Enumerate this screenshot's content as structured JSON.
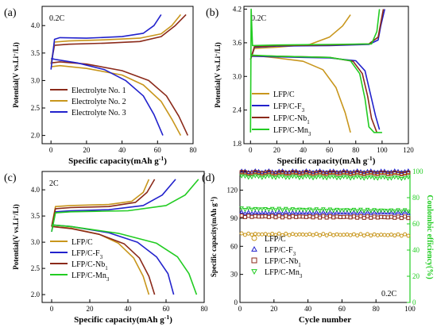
{
  "chart_data": [
    {
      "panel_label": "(a)",
      "type": "line",
      "rate": "0.2C",
      "xlabel": "Specific capacity(mAh g",
      "xlabel_sup": "-1",
      "xlabel_end": ")",
      "ylabel": "Potential(V vs.Li",
      "ylabel_sup": "+",
      "ylabel_end": "/Li)",
      "xlim": [
        -5,
        80
      ],
      "ylim": [
        1.85,
        4.35
      ],
      "xticks": [
        0,
        20,
        40,
        60,
        80
      ],
      "yticks": [
        2.0,
        2.5,
        3.0,
        3.5,
        4.0
      ],
      "xtick_labels": [
        "0",
        "20",
        "40",
        "60",
        "80"
      ],
      "ytick_labels": [
        "2.0",
        "2.5",
        "3.0",
        "3.5",
        "4.0"
      ],
      "legend_position": "bottom-left",
      "series": [
        {
          "name": "Electrolyte No. 1",
          "color": "#8B2A1A",
          "charge": [
            [
              0,
              3.3
            ],
            [
              2,
              3.64
            ],
            [
              10,
              3.66
            ],
            [
              30,
              3.68
            ],
            [
              50,
              3.71
            ],
            [
              62,
              3.8
            ],
            [
              70,
              4.0
            ],
            [
              76,
              4.2
            ]
          ],
          "discharge": [
            [
              0,
              3.32
            ],
            [
              5,
              3.34
            ],
            [
              20,
              3.3
            ],
            [
              40,
              3.18
            ],
            [
              55,
              3.0
            ],
            [
              65,
              2.72
            ],
            [
              72,
              2.35
            ],
            [
              77,
              2.0
            ]
          ]
        },
        {
          "name": "Electrolyte No. 2",
          "color": "#C8961C",
          "charge": [
            [
              0,
              3.3
            ],
            [
              2,
              3.7
            ],
            [
              10,
              3.72
            ],
            [
              30,
              3.74
            ],
            [
              50,
              3.77
            ],
            [
              62,
              3.85
            ],
            [
              68,
              4.0
            ],
            [
              73,
              4.2
            ]
          ],
          "discharge": [
            [
              0,
              3.25
            ],
            [
              5,
              3.27
            ],
            [
              20,
              3.22
            ],
            [
              40,
              3.1
            ],
            [
              52,
              2.92
            ],
            [
              62,
              2.62
            ],
            [
              68,
              2.3
            ],
            [
              73,
              2.0
            ]
          ]
        },
        {
          "name": "Electrolyte No. 3",
          "color": "#2222CC",
          "charge": [
            [
              0,
              3.2
            ],
            [
              2,
              3.75
            ],
            [
              5,
              3.78
            ],
            [
              20,
              3.77
            ],
            [
              40,
              3.8
            ],
            [
              52,
              3.86
            ],
            [
              58,
              4.0
            ],
            [
              62,
              4.2
            ]
          ],
          "discharge": [
            [
              0,
              3.4
            ],
            [
              3,
              3.38
            ],
            [
              15,
              3.32
            ],
            [
              30,
              3.2
            ],
            [
              42,
              3.0
            ],
            [
              52,
              2.72
            ],
            [
              58,
              2.38
            ],
            [
              63,
              2.0
            ]
          ]
        }
      ]
    },
    {
      "panel_label": "(b)",
      "type": "line",
      "rate": "0.2C",
      "xlabel": "Specific capacity(mAh g",
      "xlabel_sup": "-1",
      "xlabel_end": ")",
      "ylabel": "Potential(V vs.Li",
      "ylabel_sup": "+",
      "ylabel_end": "/Li)",
      "xlim": [
        -5,
        120
      ],
      "ylim": [
        1.8,
        4.25
      ],
      "xticks": [
        0,
        20,
        40,
        60,
        80,
        100,
        120
      ],
      "yticks": [
        1.8,
        2.4,
        3.0,
        3.6,
        4.2
      ],
      "xtick_labels": [
        "0",
        "20",
        "40",
        "60",
        "80",
        "100",
        "120"
      ],
      "ytick_labels": [
        "1.8",
        "2.4",
        "3.0",
        "3.6",
        "4.2"
      ],
      "legend_position": "bottom-left",
      "series": [
        {
          "name": "LFP/C",
          "color": "#C8961C",
          "charge": [
            [
              0,
              3.3
            ],
            [
              3,
              3.5
            ],
            [
              20,
              3.52
            ],
            [
              45,
              3.57
            ],
            [
              60,
              3.7
            ],
            [
              70,
              3.9
            ],
            [
              76,
              4.1
            ]
          ],
          "discharge": [
            [
              0,
              3.38
            ],
            [
              20,
              3.33
            ],
            [
              40,
              3.27
            ],
            [
              55,
              3.12
            ],
            [
              65,
              2.8
            ],
            [
              72,
              2.35
            ],
            [
              76,
              2.0
            ]
          ]
        },
        {
          "name": "LFP/C-F3",
          "base": "LFP/C-F",
          "sub": "3",
          "color": "#2222CC",
          "charge": [
            [
              0,
              3.3
            ],
            [
              3,
              3.52
            ],
            [
              20,
              3.54
            ],
            [
              60,
              3.55
            ],
            [
              90,
              3.57
            ],
            [
              97,
              3.65
            ],
            [
              99,
              3.9
            ],
            [
              102,
              4.2
            ]
          ],
          "discharge": [
            [
              0,
              3.36
            ],
            [
              20,
              3.35
            ],
            [
              60,
              3.33
            ],
            [
              80,
              3.28
            ],
            [
              87,
              3.1
            ],
            [
              91,
              2.7
            ],
            [
              95,
              2.3
            ],
            [
              98,
              2.05
            ]
          ]
        },
        {
          "name": "LFP/C-Nb1",
          "base": "LFP/C-Nb",
          "sub": "1",
          "color": "#8B2A1A",
          "charge": [
            [
              0,
              3.3
            ],
            [
              3,
              3.53
            ],
            [
              20,
              3.55
            ],
            [
              60,
              3.56
            ],
            [
              90,
              3.58
            ],
            [
              97,
              3.7
            ],
            [
              99,
              3.95
            ],
            [
              101,
              4.2
            ]
          ],
          "discharge": [
            [
              0,
              3.37
            ],
            [
              20,
              3.36
            ],
            [
              60,
              3.34
            ],
            [
              78,
              3.27
            ],
            [
              85,
              3.05
            ],
            [
              89,
              2.65
            ],
            [
              92,
              2.25
            ],
            [
              96,
              2.0
            ]
          ]
        },
        {
          "name": "LFP/C-Mn3",
          "base": "LFP/C-Mn",
          "sub": "3",
          "color": "#22CC22",
          "charge": [
            [
              0,
              2.0
            ],
            [
              0.5,
              4.2
            ],
            [
              1.5,
              3.55
            ],
            [
              20,
              3.56
            ],
            [
              60,
              3.57
            ],
            [
              92,
              3.58
            ],
            [
              96,
              3.8
            ],
            [
              98,
              4.2
            ]
          ],
          "discharge": [
            [
              0,
              3.38
            ],
            [
              20,
              3.36
            ],
            [
              60,
              3.34
            ],
            [
              76,
              3.28
            ],
            [
              83,
              3.05
            ],
            [
              87,
              2.6
            ],
            [
              90,
              2.1
            ],
            [
              94,
              2.0
            ],
            [
              100,
              2.0
            ]
          ]
        }
      ]
    },
    {
      "panel_label": "(c)",
      "type": "line",
      "rate": "2C",
      "xlabel": "Specific capacity(mAh g",
      "xlabel_sup": "-1",
      "xlabel_end": ")",
      "ylabel": "Potential(V vs.Li",
      "ylabel_sup": "+",
      "ylabel_end": "/Li)",
      "xlim": [
        -5,
        80
      ],
      "ylim": [
        1.85,
        4.35
      ],
      "xticks": [
        0,
        20,
        40,
        60,
        80
      ],
      "yticks": [
        2.0,
        2.5,
        3.0,
        3.5,
        4.0
      ],
      "xtick_labels": [
        "0",
        "20",
        "40",
        "60",
        "80"
      ],
      "ytick_labels": [
        "2.0",
        "2.5",
        "3.0",
        "3.5",
        "4.0"
      ],
      "legend_position": "bottom-left",
      "series": [
        {
          "name": "LFP/C",
          "color": "#C8961C",
          "charge": [
            [
              0,
              3.3
            ],
            [
              2,
              3.68
            ],
            [
              10,
              3.7
            ],
            [
              30,
              3.72
            ],
            [
              42,
              3.78
            ],
            [
              48,
              3.95
            ],
            [
              51,
              4.2
            ]
          ],
          "discharge": [
            [
              0,
              3.3
            ],
            [
              10,
              3.27
            ],
            [
              25,
              3.15
            ],
            [
              35,
              2.98
            ],
            [
              43,
              2.7
            ],
            [
              48,
              2.35
            ],
            [
              51,
              2.0
            ]
          ]
        },
        {
          "name": "LFP/C-F3",
          "base": "LFP/C-F",
          "sub": "3",
          "color": "#2222CC",
          "charge": [
            [
              0,
              3.2
            ],
            [
              2,
              3.58
            ],
            [
              10,
              3.6
            ],
            [
              30,
              3.62
            ],
            [
              48,
              3.7
            ],
            [
              58,
              3.9
            ],
            [
              65,
              4.2
            ]
          ],
          "discharge": [
            [
              0,
              3.33
            ],
            [
              10,
              3.3
            ],
            [
              30,
              3.18
            ],
            [
              45,
              3.0
            ],
            [
              55,
              2.72
            ],
            [
              61,
              2.4
            ],
            [
              64,
              2.0
            ]
          ]
        },
        {
          "name": "LFP/C-Nb1",
          "base": "LFP/C-Nb",
          "sub": "1",
          "color": "#8B2A1A",
          "charge": [
            [
              0,
              3.3
            ],
            [
              2,
              3.64
            ],
            [
              10,
              3.66
            ],
            [
              30,
              3.68
            ],
            [
              44,
              3.76
            ],
            [
              50,
              3.95
            ],
            [
              54,
              4.2
            ]
          ],
          "discharge": [
            [
              0,
              3.3
            ],
            [
              10,
              3.26
            ],
            [
              25,
              3.15
            ],
            [
              38,
              2.97
            ],
            [
              46,
              2.7
            ],
            [
              51,
              2.35
            ],
            [
              54,
              2.0
            ]
          ]
        },
        {
          "name": "LFP/C-Mn3",
          "base": "LFP/C-Mn",
          "sub": "3",
          "color": "#22CC22",
          "charge": [
            [
              0,
              3.2
            ],
            [
              2,
              3.56
            ],
            [
              10,
              3.58
            ],
            [
              40,
              3.6
            ],
            [
              60,
              3.7
            ],
            [
              70,
              3.9
            ],
            [
              77,
              4.2
            ]
          ],
          "discharge": [
            [
              0,
              3.33
            ],
            [
              10,
              3.3
            ],
            [
              35,
              3.17
            ],
            [
              55,
              2.98
            ],
            [
              66,
              2.72
            ],
            [
              72,
              2.4
            ],
            [
              76,
              2.0
            ]
          ]
        }
      ]
    },
    {
      "panel_label": "(d)",
      "type": "scatter",
      "rate": "0.2C",
      "xlabel": "Cycle number",
      "ylabel_left": "Specific capacity(mAh g",
      "ylabel_left_sup": "-1",
      "ylabel_left_end": ")",
      "ylabel_right": "Coulombic efficiency(%)",
      "xlim": [
        0,
        100
      ],
      "ylim_left": [
        0,
        140
      ],
      "ylim_right": [
        0,
        100
      ],
      "xticks": [
        0,
        20,
        40,
        60,
        80,
        100
      ],
      "yticks_left": [
        0,
        30,
        60,
        90,
        120
      ],
      "yticks_right": [
        0,
        20,
        40,
        60,
        80,
        100
      ],
      "xtick_labels": [
        "0",
        "20",
        "40",
        "60",
        "80",
        "100"
      ],
      "ytick_left_labels": [
        "0",
        "30",
        "60",
        "90",
        "120"
      ],
      "ytick_right_labels": [
        "0",
        "20",
        "40",
        "60",
        "80",
        "100"
      ],
      "legend_position": "bottom-left",
      "series": [
        {
          "name": "LFP/C",
          "color": "#C8961C",
          "marker": "circle",
          "capacity": [
            73,
            72
          ],
          "efficiency": [
            99.5,
            99.0
          ]
        },
        {
          "name": "LFP/C-F3",
          "base": "LFP/C-F",
          "sub": "3",
          "color": "#2222CC",
          "marker": "triangle-up",
          "capacity": [
            96,
            96
          ],
          "efficiency": [
            100,
            100
          ]
        },
        {
          "name": "LFP/C-Nb1",
          "base": "LFP/C-Nb",
          "sub": "1",
          "color": "#8B2A1A",
          "marker": "square",
          "capacity": [
            92,
            91
          ],
          "efficiency": [
            99.0,
            98.5
          ]
        },
        {
          "name": "LFP/C-Mn3",
          "base": "LFP/C-Mn",
          "sub": "3",
          "color": "#22CC22",
          "marker": "triangle-down",
          "capacity": [
            100,
            98
          ],
          "efficiency": [
            96,
            95
          ]
        }
      ]
    }
  ]
}
